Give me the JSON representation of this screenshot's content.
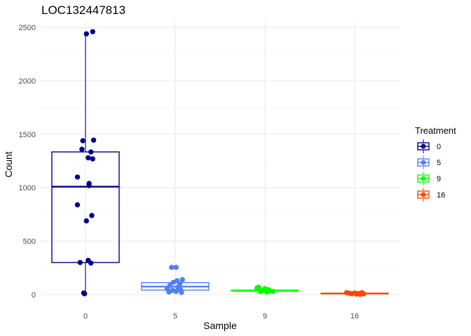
{
  "chart_data": {
    "type": "box",
    "title": "LOC132447813",
    "xlabel": "Sample",
    "ylabel": "Count",
    "categories": [
      "0",
      "5",
      "9",
      "16"
    ],
    "ylim": [
      -60,
      2560
    ],
    "yticks": [
      0,
      500,
      1000,
      1500,
      2000,
      2500
    ],
    "grid": true,
    "legend": {
      "title": "Treatment",
      "position": "right",
      "items": [
        "0",
        "5",
        "9",
        "16"
      ]
    },
    "colors": {
      "0": "#00008b",
      "5": "#4f7ff5",
      "9": "#00ff00",
      "16": "#ff4500"
    },
    "boxes": [
      {
        "category": "0",
        "q1": 300,
        "median": 1010,
        "q3": 1335,
        "whisker_low": 10,
        "whisker_high": 2460
      },
      {
        "category": "5",
        "q1": 42,
        "median": 75,
        "q3": 112,
        "whisker_low": 20,
        "whisker_high": 140
      },
      {
        "category": "9",
        "q1": 33,
        "median": 38,
        "q3": 42,
        "whisker_low": 25,
        "whisker_high": 55
      },
      {
        "category": "16",
        "q1": 7,
        "median": 10,
        "q3": 13,
        "whisker_low": 3,
        "whisker_high": 20
      }
    ],
    "points": [
      {
        "category": "0",
        "jitter": 0.08,
        "y": 2460
      },
      {
        "category": "0",
        "jitter": 0.01,
        "y": 2440
      },
      {
        "category": "0",
        "jitter": -0.03,
        "y": 1440
      },
      {
        "category": "0",
        "jitter": 0.09,
        "y": 1445
      },
      {
        "category": "0",
        "jitter": -0.04,
        "y": 1360
      },
      {
        "category": "0",
        "jitter": 0.06,
        "y": 1335
      },
      {
        "category": "0",
        "jitter": 0.03,
        "y": 1280
      },
      {
        "category": "0",
        "jitter": 0.08,
        "y": 1270
      },
      {
        "category": "0",
        "jitter": -0.09,
        "y": 1100
      },
      {
        "category": "0",
        "jitter": 0.04,
        "y": 1040
      },
      {
        "category": "0",
        "jitter": 0.04,
        "y": 1020
      },
      {
        "category": "0",
        "jitter": -0.09,
        "y": 840
      },
      {
        "category": "0",
        "jitter": 0.07,
        "y": 740
      },
      {
        "category": "0",
        "jitter": 0.01,
        "y": 690
      },
      {
        "category": "0",
        "jitter": 0.03,
        "y": 320
      },
      {
        "category": "0",
        "jitter": -0.06,
        "y": 300
      },
      {
        "category": "0",
        "jitter": 0.06,
        "y": 295
      },
      {
        "category": "0",
        "jitter": -0.02,
        "y": 15
      },
      {
        "category": "0",
        "jitter": -0.01,
        "y": 8
      },
      {
        "category": "5",
        "jitter": -0.04,
        "y": 255
      },
      {
        "category": "5",
        "jitter": 0.01,
        "y": 255
      },
      {
        "category": "5",
        "jitter": 0.08,
        "y": 140
      },
      {
        "category": "5",
        "jitter": 0.02,
        "y": 130
      },
      {
        "category": "5",
        "jitter": -0.02,
        "y": 115
      },
      {
        "category": "5",
        "jitter": 0.05,
        "y": 100
      },
      {
        "category": "5",
        "jitter": -0.06,
        "y": 85
      },
      {
        "category": "5",
        "jitter": 0.03,
        "y": 70
      },
      {
        "category": "5",
        "jitter": -0.09,
        "y": 55
      },
      {
        "category": "5",
        "jitter": 0.06,
        "y": 45
      },
      {
        "category": "5",
        "jitter": -0.03,
        "y": 40
      },
      {
        "category": "5",
        "jitter": 0.01,
        "y": 30
      },
      {
        "category": "5",
        "jitter": -0.07,
        "y": 25
      },
      {
        "category": "5",
        "jitter": 0.07,
        "y": 20
      },
      {
        "category": "9",
        "jitter": -0.09,
        "y": 60
      },
      {
        "category": "9",
        "jitter": -0.07,
        "y": 70
      },
      {
        "category": "9",
        "jitter": 0.0,
        "y": 55
      },
      {
        "category": "9",
        "jitter": 0.04,
        "y": 45
      },
      {
        "category": "9",
        "jitter": -0.03,
        "y": 40
      },
      {
        "category": "9",
        "jitter": 0.06,
        "y": 35
      },
      {
        "category": "9",
        "jitter": 0.09,
        "y": 30
      },
      {
        "category": "9",
        "jitter": -0.05,
        "y": 28
      },
      {
        "category": "9",
        "jitter": 0.02,
        "y": 25
      },
      {
        "category": "16",
        "jitter": -0.09,
        "y": 18
      },
      {
        "category": "16",
        "jitter": -0.06,
        "y": 12
      },
      {
        "category": "16",
        "jitter": -0.03,
        "y": 8
      },
      {
        "category": "16",
        "jitter": 0.0,
        "y": 15
      },
      {
        "category": "16",
        "jitter": 0.02,
        "y": 5
      },
      {
        "category": "16",
        "jitter": 0.04,
        "y": 10
      },
      {
        "category": "16",
        "jitter": 0.06,
        "y": 3
      },
      {
        "category": "16",
        "jitter": 0.08,
        "y": 18
      },
      {
        "category": "16",
        "jitter": 0.1,
        "y": 7
      }
    ]
  }
}
